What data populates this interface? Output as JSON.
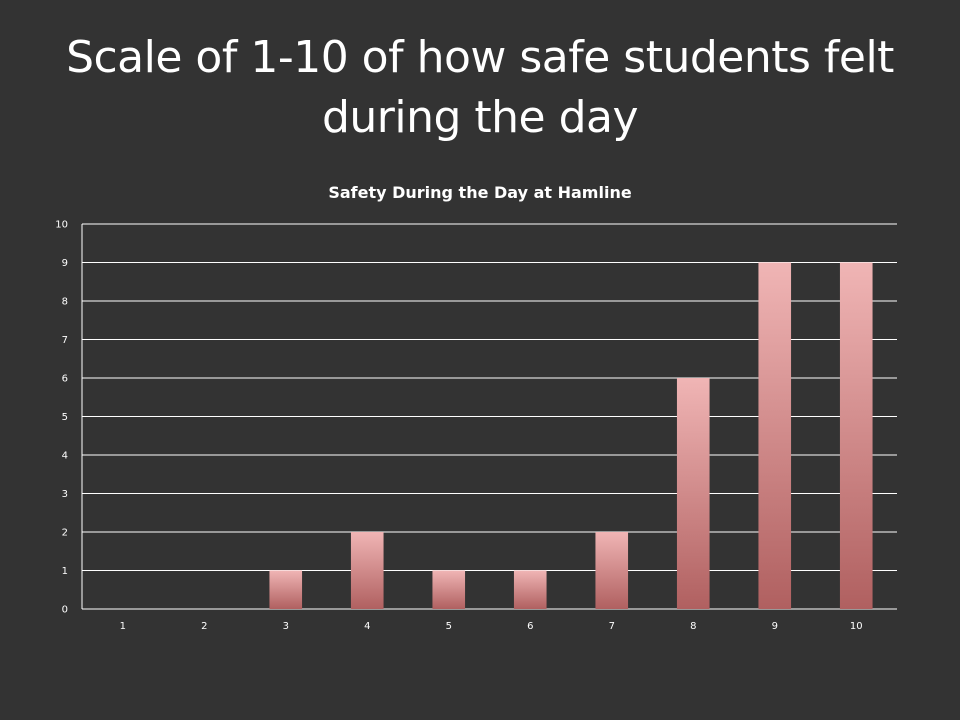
{
  "slide": {
    "title": "Scale of 1-10 of how safe students felt during the day"
  },
  "colors": {
    "background": "#333333",
    "gridline": "#ffffff",
    "bar_top": "#f0b5b5",
    "bar_bottom": "#b06060",
    "text": "#ffffff"
  },
  "chart_data": {
    "type": "bar",
    "title": "Safety During the Day at Hamline",
    "xlabel": "",
    "ylabel": "",
    "categories": [
      "1",
      "2",
      "3",
      "4",
      "5",
      "6",
      "7",
      "8",
      "9",
      "10"
    ],
    "values": [
      0,
      0,
      1,
      2,
      1,
      1,
      2,
      6,
      9,
      9
    ],
    "ylim": [
      0,
      10
    ],
    "yticks": [
      "0",
      "1",
      "2",
      "3",
      "4",
      "5",
      "6",
      "7",
      "8",
      "9",
      "10"
    ],
    "grid": true,
    "legend": "none"
  }
}
